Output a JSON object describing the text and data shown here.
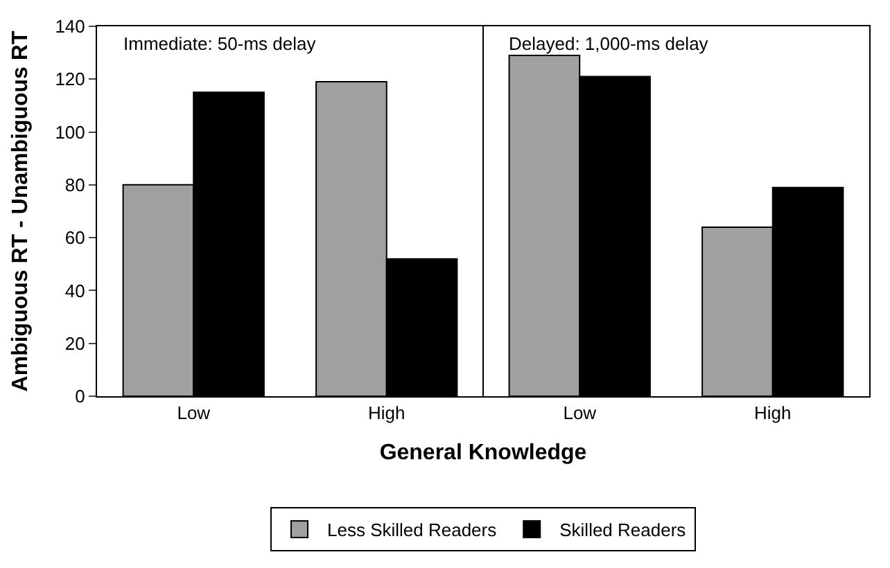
{
  "chart_data": {
    "type": "bar",
    "xlabel": "General Knowledge",
    "ylabel": "Ambiguous RT - Unambiguous RT",
    "categories": [
      "Low",
      "High",
      "Low",
      "High"
    ],
    "series": [
      {
        "name": "Less Skilled Readers",
        "color": "#a0a0a0",
        "values": [
          80,
          119,
          129,
          64
        ]
      },
      {
        "name": "Skilled Readers",
        "color": "#000000",
        "values": [
          115,
          52,
          121,
          79
        ]
      }
    ],
    "ylim": [
      0,
      140
    ],
    "yticks": [
      0,
      20,
      40,
      60,
      80,
      100,
      120,
      140
    ],
    "legend": "bottom",
    "annotations": [
      "Immediate: 50-ms delay",
      "Delayed: 1,000-ms delay"
    ]
  }
}
